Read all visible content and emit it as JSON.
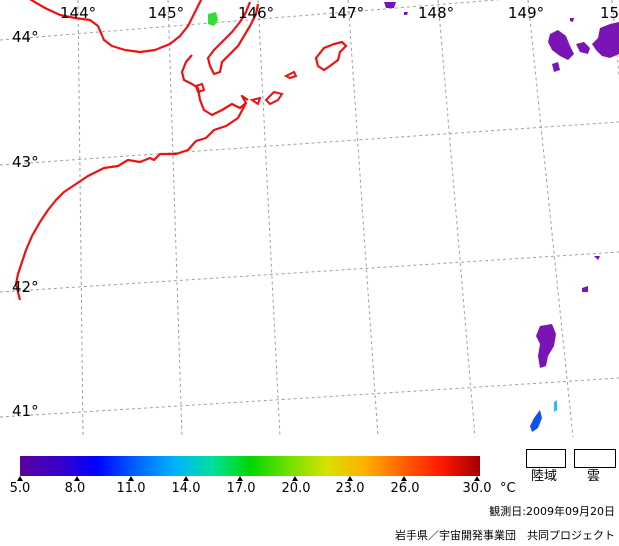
{
  "map": {
    "longitude_labels": [
      "144°",
      "145°",
      "146°",
      "147°",
      "148°",
      "149°",
      "15"
    ],
    "latitude_labels": [
      "44°",
      "43°",
      "42°",
      "41°"
    ]
  },
  "colorbar": {
    "ticks": [
      "5.0",
      "8.0",
      "11.0",
      "14.0",
      "17.0",
      "20.0",
      "23.0",
      "26.0",
      "30.0"
    ],
    "unit": "°C",
    "colors": [
      "#5a00a0",
      "#3a00c8",
      "#0000ff",
      "#0060ff",
      "#00b0ff",
      "#00e0a0",
      "#00d800",
      "#70e000",
      "#d8e000",
      "#ffb000",
      "#ff6000",
      "#ff1800",
      "#a00000"
    ]
  },
  "legend": {
    "land_label": "陸域",
    "cloud_label": "雲"
  },
  "observation_date": "観測日:2009年09月20日",
  "credit": "岩手県／宇宙開発事業団　共同プロジェクト",
  "colors": {
    "coast": "#ee1111",
    "grid": "#a0a0a0",
    "cloud_purple": "#7a14b4",
    "green_patch": "#33dd33"
  }
}
